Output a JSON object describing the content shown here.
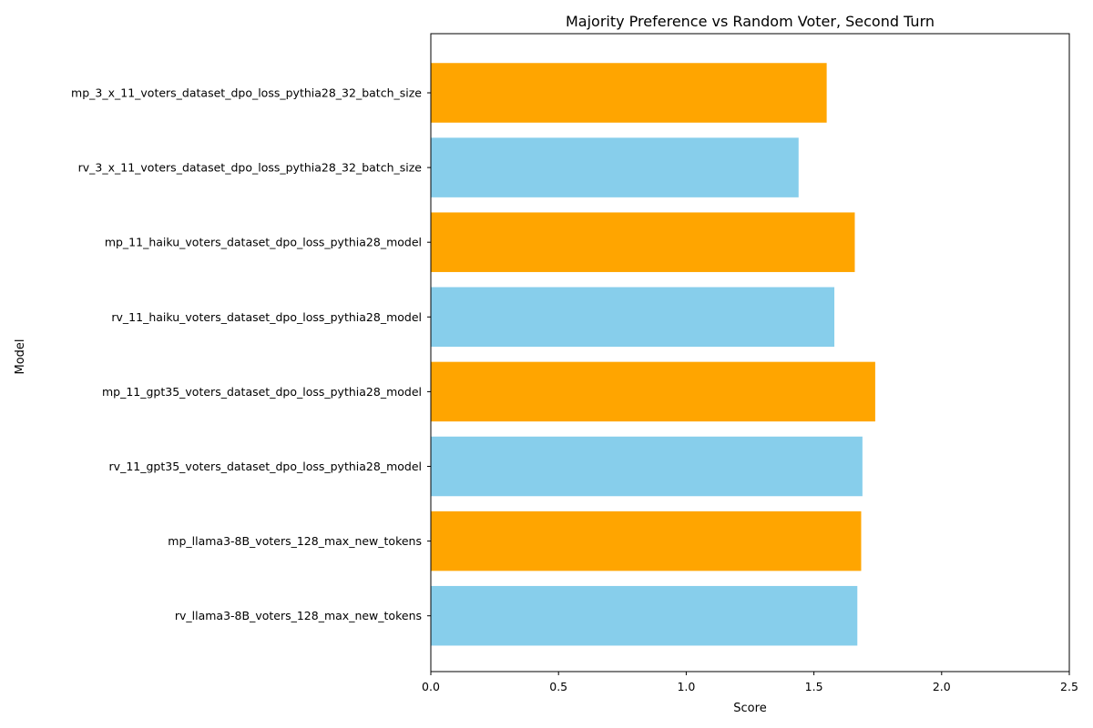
{
  "chart_data": {
    "type": "bar",
    "orientation": "horizontal",
    "title": "Majority Preference vs Random Voter, Second Turn",
    "xlabel": "Score",
    "ylabel": "Model",
    "xlim": [
      0,
      2.5
    ],
    "xticks": [
      "0.0",
      "0.5",
      "1.0",
      "1.5",
      "2.0",
      "2.5"
    ],
    "grid": false,
    "legend": "none",
    "colors": {
      "mp": "#FFA500",
      "rv": "#87CEEB"
    },
    "categories": [
      "mp_3_x_11_voters_dataset_dpo_loss_pythia28_32_batch_size",
      "rv_3_x_11_voters_dataset_dpo_loss_pythia28_32_batch_size",
      "mp_11_haiku_voters_dataset_dpo_loss_pythia28_model",
      "rv_11_haiku_voters_dataset_dpo_loss_pythia28_model",
      "mp_11_gpt35_voters_dataset_dpo_loss_pythia28_model",
      "rv_11_gpt35_voters_dataset_dpo_loss_pythia28_model",
      "mp_llama3-8B_voters_128_max_new_tokens",
      "rv_llama3-8B_voters_128_max_new_tokens"
    ],
    "values": [
      1.55,
      1.44,
      1.66,
      1.58,
      1.74,
      1.69,
      1.685,
      1.67
    ]
  }
}
